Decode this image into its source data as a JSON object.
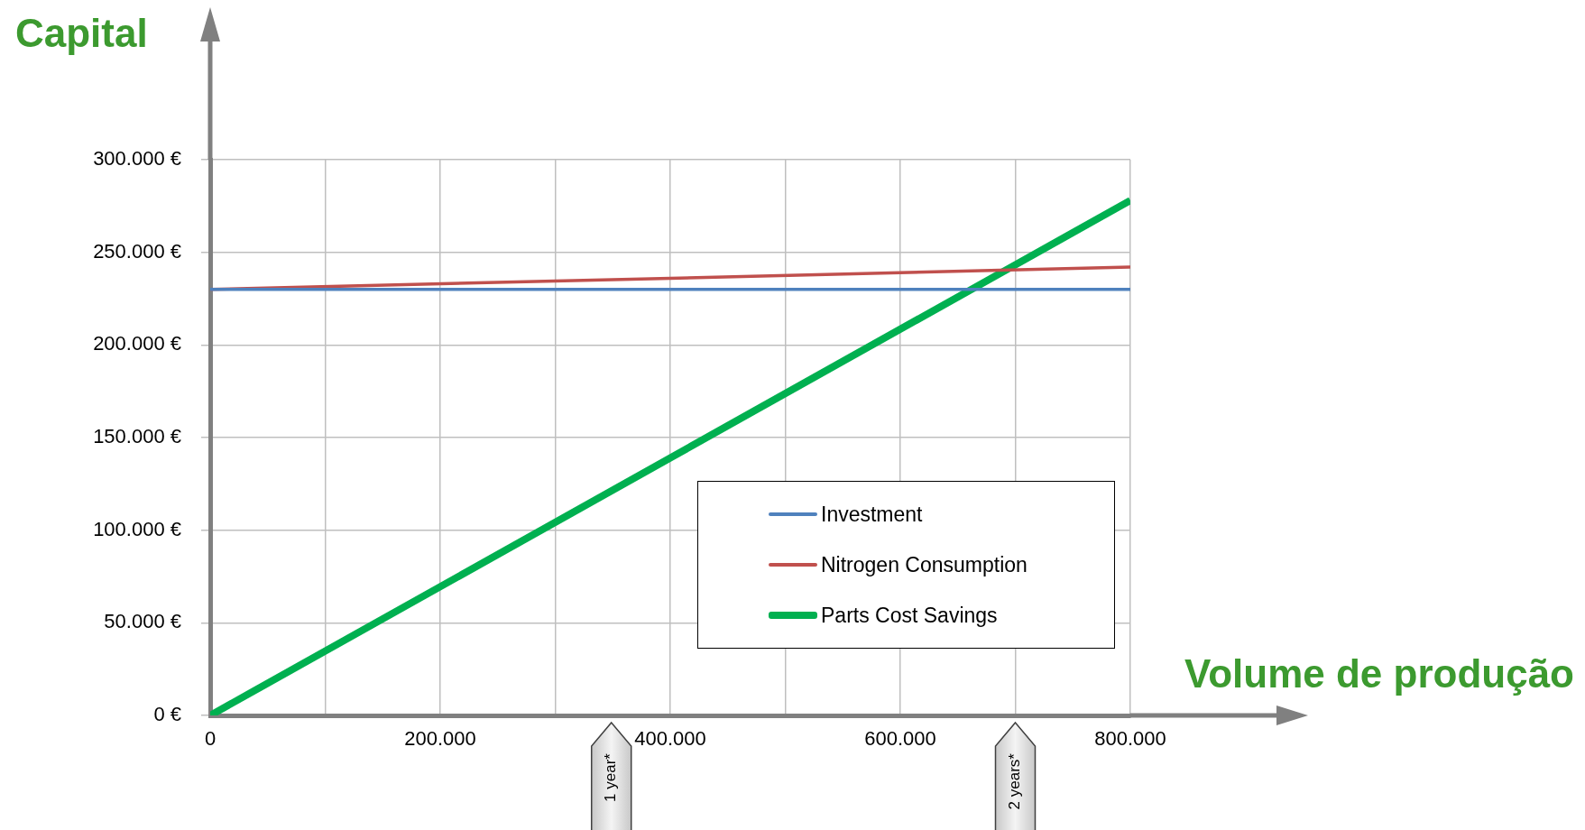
{
  "chart_data": {
    "type": "line",
    "xlabel": "Volume de produção",
    "ylabel": "Capital",
    "x": [
      0,
      800000
    ],
    "series": [
      {
        "name": "Investment",
        "color": "#4f81bd",
        "values": [
          230000,
          230000
        ]
      },
      {
        "name": "Nitrogen Consumption",
        "color": "#c0504d",
        "values": [
          230000,
          242000
        ]
      },
      {
        "name": "Parts Cost Savings",
        "color": "#00b050",
        "values": [
          0,
          278000
        ]
      }
    ],
    "xlim": [
      0,
      800000
    ],
    "xticks": [
      0,
      {
        "value": 100000,
        "label": null
      },
      {
        "value": 200000,
        "label": "200.000"
      },
      {
        "value": 300000,
        "label": null
      },
      {
        "value": 400000,
        "label": "400.000"
      },
      {
        "value": 500000,
        "label": null
      },
      {
        "value": 600000,
        "label": "600.000"
      },
      {
        "value": 700000,
        "label": null
      },
      {
        "value": 800000,
        "label": "800.000"
      }
    ],
    "ylim": [
      0,
      300000
    ],
    "yticks": [
      {
        "value": 0,
        "label": "0 €"
      },
      {
        "value": 50000,
        "label": "50.000 €"
      },
      {
        "value": 100000,
        "label": "100.000 €"
      },
      {
        "value": 150000,
        "label": "150.000 €"
      },
      {
        "value": 200000,
        "label": "200.000 €"
      },
      {
        "value": 250000,
        "label": "250.000 €"
      },
      {
        "value": 300000,
        "label": "300.000 €"
      }
    ],
    "grid": true,
    "legend": "bottom right",
    "annotations": [
      "1 year*",
      "2 years*"
    ]
  }
}
